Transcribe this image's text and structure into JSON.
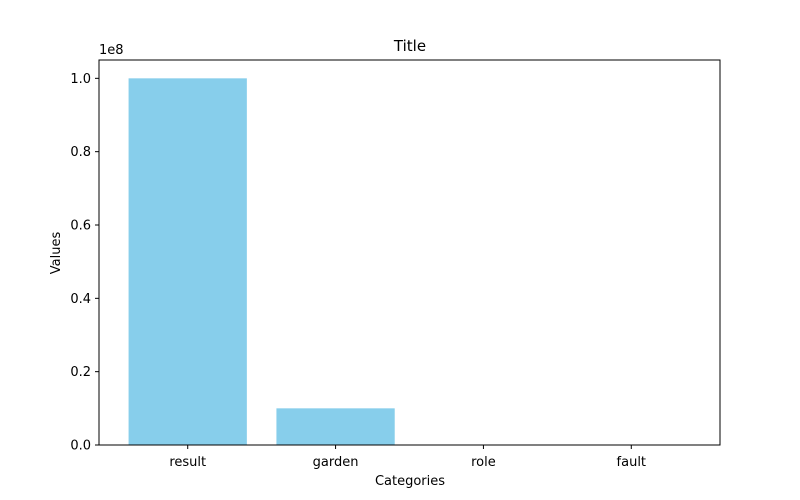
{
  "chart_data": {
    "type": "bar",
    "title": "Title",
    "xlabel": "Categories",
    "ylabel": "Values",
    "categories": [
      "result",
      "garden",
      "role",
      "fault"
    ],
    "values": [
      100000000,
      10000000,
      0,
      0
    ],
    "ylim": [
      0,
      105000000
    ],
    "y_ticks": [
      0,
      20000000,
      40000000,
      60000000,
      80000000,
      100000000
    ],
    "y_tick_labels": [
      "0.0",
      "0.2",
      "0.4",
      "0.6",
      "0.8",
      "1.0"
    ],
    "y_offset_label": "1e8",
    "grid": false,
    "bar_color": "#87CEEB"
  }
}
